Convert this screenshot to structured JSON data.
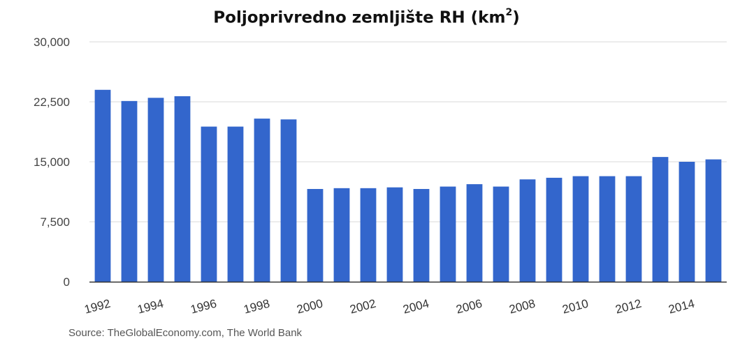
{
  "chart_data": {
    "type": "bar",
    "title_main": "Poljoprivredno zemljište RH (km",
    "title_sup": "2",
    "title_end": ")",
    "xlabel": "",
    "ylabel": "",
    "ylim": [
      0,
      30000
    ],
    "y_ticks": [
      "30,000",
      "22,500",
      "15,000",
      "7,500",
      "0"
    ],
    "y_tick_values": [
      30000,
      22500,
      15000,
      7500,
      0
    ],
    "grid": true,
    "legend": "none",
    "colors": {
      "bar": "#3366cc",
      "grid": "#d9d9d9",
      "axis": "#333333"
    },
    "categories": [
      "1992",
      "1993",
      "1994",
      "1995",
      "1996",
      "1997",
      "1998",
      "1999",
      "2000",
      "2001",
      "2002",
      "2003",
      "2004",
      "2005",
      "2006",
      "2007",
      "2008",
      "2009",
      "2010",
      "2011",
      "2012",
      "2013",
      "2014",
      "2015"
    ],
    "x_tick_labels": [
      "1992",
      "1994",
      "1996",
      "1998",
      "2000",
      "2002",
      "2004",
      "2006",
      "2008",
      "2010",
      "2012",
      "2014"
    ],
    "values": [
      24000,
      22600,
      23000,
      23200,
      19400,
      19400,
      20400,
      20300,
      11600,
      11700,
      11700,
      11800,
      11600,
      11900,
      12200,
      11900,
      12800,
      13000,
      13200,
      13200,
      13200,
      15600,
      15000,
      15300
    ],
    "source": "Source: TheGlobalEconomy.com, The World Bank"
  }
}
